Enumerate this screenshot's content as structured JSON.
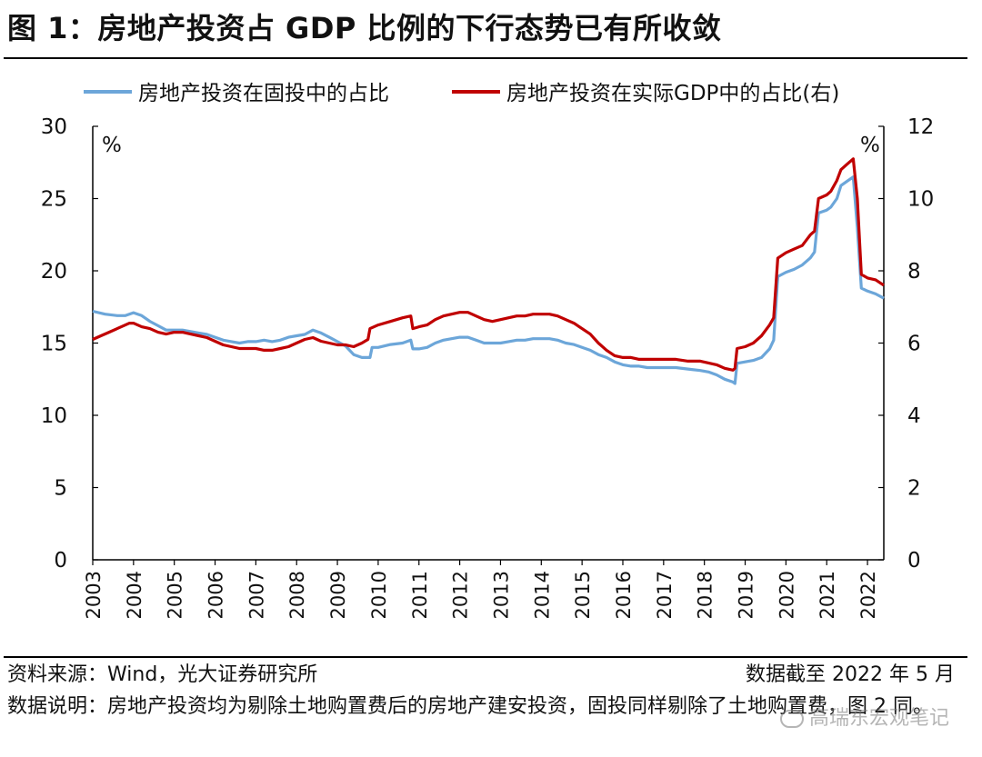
{
  "figure": {
    "title": "图 1：房地产投资占 GDP 比例的下行态势已有所收敛",
    "source": "资料来源：Wind，光大证券研究所",
    "cutoff": "数据截至 2022 年 5 月",
    "note": "数据说明：房地产投资均为剔除土地购置费后的房地产建安投资，固投同样剔除了土地购置费，图 2 同。",
    "watermark": "高瑞东宏观笔记"
  },
  "chart_data": {
    "type": "line",
    "unit_left": "%",
    "unit_right": "%",
    "left_ylim": [
      0,
      30
    ],
    "left_yticks": [
      "0",
      "5",
      "10",
      "15",
      "20",
      "25",
      "30"
    ],
    "right_ylim": [
      0,
      12
    ],
    "right_yticks": [
      "0",
      "2",
      "4",
      "6",
      "8",
      "10",
      "12"
    ],
    "x_ticks": [
      "2003",
      "2004",
      "2005",
      "2006",
      "2007",
      "2008",
      "2009",
      "2010",
      "2011",
      "2012",
      "2013",
      "2014",
      "2015",
      "2016",
      "2017",
      "2018",
      "2019",
      "2020",
      "2021",
      "2022"
    ],
    "x_range": [
      2003.0,
      2022.4
    ],
    "grid": false,
    "legend_position": "top",
    "series": [
      {
        "name": "房地产投资在固投中的占比",
        "axis": "left",
        "color": "#6CA6D9",
        "points": [
          [
            2003.0,
            17.2
          ],
          [
            2003.3,
            17.0
          ],
          [
            2003.6,
            16.9
          ],
          [
            2003.8,
            16.9
          ],
          [
            2004.0,
            17.1
          ],
          [
            2004.2,
            16.9
          ],
          [
            2004.4,
            16.5
          ],
          [
            2004.6,
            16.2
          ],
          [
            2004.8,
            15.9
          ],
          [
            2005.0,
            15.9
          ],
          [
            2005.2,
            15.9
          ],
          [
            2005.4,
            15.8
          ],
          [
            2005.6,
            15.7
          ],
          [
            2005.8,
            15.6
          ],
          [
            2006.0,
            15.4
          ],
          [
            2006.2,
            15.2
          ],
          [
            2006.4,
            15.1
          ],
          [
            2006.6,
            15.0
          ],
          [
            2006.8,
            15.1
          ],
          [
            2007.0,
            15.1
          ],
          [
            2007.2,
            15.2
          ],
          [
            2007.4,
            15.1
          ],
          [
            2007.6,
            15.2
          ],
          [
            2007.8,
            15.4
          ],
          [
            2008.0,
            15.5
          ],
          [
            2008.2,
            15.6
          ],
          [
            2008.4,
            15.9
          ],
          [
            2008.6,
            15.7
          ],
          [
            2008.8,
            15.4
          ],
          [
            2009.0,
            15.1
          ],
          [
            2009.2,
            14.8
          ],
          [
            2009.4,
            14.2
          ],
          [
            2009.6,
            14.0
          ],
          [
            2009.8,
            14.0
          ],
          [
            2009.85,
            14.7
          ],
          [
            2010.0,
            14.7
          ],
          [
            2010.3,
            14.9
          ],
          [
            2010.6,
            15.0
          ],
          [
            2010.8,
            15.2
          ],
          [
            2010.85,
            14.6
          ],
          [
            2011.0,
            14.6
          ],
          [
            2011.2,
            14.7
          ],
          [
            2011.4,
            15.0
          ],
          [
            2011.6,
            15.2
          ],
          [
            2011.8,
            15.3
          ],
          [
            2012.0,
            15.4
          ],
          [
            2012.2,
            15.4
          ],
          [
            2012.4,
            15.2
          ],
          [
            2012.6,
            15.0
          ],
          [
            2012.8,
            15.0
          ],
          [
            2013.0,
            15.0
          ],
          [
            2013.2,
            15.1
          ],
          [
            2013.4,
            15.2
          ],
          [
            2013.6,
            15.2
          ],
          [
            2013.8,
            15.3
          ],
          [
            2014.0,
            15.3
          ],
          [
            2014.2,
            15.3
          ],
          [
            2014.4,
            15.2
          ],
          [
            2014.6,
            15.0
          ],
          [
            2014.8,
            14.9
          ],
          [
            2015.0,
            14.7
          ],
          [
            2015.2,
            14.5
          ],
          [
            2015.4,
            14.2
          ],
          [
            2015.6,
            14.0
          ],
          [
            2015.8,
            13.7
          ],
          [
            2016.0,
            13.5
          ],
          [
            2016.2,
            13.4
          ],
          [
            2016.4,
            13.4
          ],
          [
            2016.6,
            13.3
          ],
          [
            2016.8,
            13.3
          ],
          [
            2017.0,
            13.3
          ],
          [
            2017.3,
            13.3
          ],
          [
            2017.6,
            13.2
          ],
          [
            2017.9,
            13.1
          ],
          [
            2018.1,
            13.0
          ],
          [
            2018.3,
            12.8
          ],
          [
            2018.5,
            12.5
          ],
          [
            2018.7,
            12.3
          ],
          [
            2018.75,
            12.2
          ],
          [
            2018.8,
            13.6
          ],
          [
            2019.0,
            13.7
          ],
          [
            2019.2,
            13.8
          ],
          [
            2019.4,
            14.0
          ],
          [
            2019.6,
            14.6
          ],
          [
            2019.7,
            15.2
          ],
          [
            2019.8,
            19.6
          ],
          [
            2020.0,
            19.9
          ],
          [
            2020.2,
            20.1
          ],
          [
            2020.4,
            20.4
          ],
          [
            2020.6,
            20.9
          ],
          [
            2020.7,
            21.3
          ],
          [
            2020.8,
            24.0
          ],
          [
            2021.0,
            24.2
          ],
          [
            2021.1,
            24.4
          ],
          [
            2021.25,
            25.0
          ],
          [
            2021.35,
            25.9
          ],
          [
            2021.5,
            26.2
          ],
          [
            2021.65,
            26.5
          ],
          [
            2021.75,
            23.0
          ],
          [
            2021.85,
            18.8
          ],
          [
            2022.0,
            18.6
          ],
          [
            2022.2,
            18.4
          ],
          [
            2022.4,
            18.1
          ]
        ]
      },
      {
        "name": "房地产投资在实际GDP中的占比(右)",
        "axis": "right",
        "color": "#C00000",
        "points": [
          [
            2003.0,
            6.1
          ],
          [
            2003.2,
            6.2
          ],
          [
            2003.4,
            6.3
          ],
          [
            2003.6,
            6.4
          ],
          [
            2003.8,
            6.5
          ],
          [
            2003.9,
            6.55
          ],
          [
            2004.0,
            6.55
          ],
          [
            2004.2,
            6.45
          ],
          [
            2004.4,
            6.4
          ],
          [
            2004.6,
            6.3
          ],
          [
            2004.8,
            6.25
          ],
          [
            2005.0,
            6.3
          ],
          [
            2005.2,
            6.3
          ],
          [
            2005.4,
            6.25
          ],
          [
            2005.6,
            6.2
          ],
          [
            2005.8,
            6.15
          ],
          [
            2006.0,
            6.05
          ],
          [
            2006.2,
            5.95
          ],
          [
            2006.4,
            5.9
          ],
          [
            2006.6,
            5.85
          ],
          [
            2006.8,
            5.85
          ],
          [
            2007.0,
            5.85
          ],
          [
            2007.2,
            5.8
          ],
          [
            2007.4,
            5.8
          ],
          [
            2007.6,
            5.85
          ],
          [
            2007.8,
            5.9
          ],
          [
            2008.0,
            6.0
          ],
          [
            2008.2,
            6.1
          ],
          [
            2008.4,
            6.15
          ],
          [
            2008.6,
            6.05
          ],
          [
            2008.8,
            6.0
          ],
          [
            2009.0,
            5.95
          ],
          [
            2009.2,
            5.95
          ],
          [
            2009.4,
            5.9
          ],
          [
            2009.6,
            6.0
          ],
          [
            2009.75,
            6.1
          ],
          [
            2009.8,
            6.4
          ],
          [
            2010.0,
            6.5
          ],
          [
            2010.3,
            6.6
          ],
          [
            2010.6,
            6.7
          ],
          [
            2010.8,
            6.75
          ],
          [
            2010.85,
            6.4
          ],
          [
            2011.0,
            6.45
          ],
          [
            2011.2,
            6.5
          ],
          [
            2011.4,
            6.65
          ],
          [
            2011.6,
            6.75
          ],
          [
            2011.8,
            6.8
          ],
          [
            2012.0,
            6.85
          ],
          [
            2012.2,
            6.85
          ],
          [
            2012.4,
            6.75
          ],
          [
            2012.6,
            6.65
          ],
          [
            2012.8,
            6.6
          ],
          [
            2013.0,
            6.65
          ],
          [
            2013.2,
            6.7
          ],
          [
            2013.4,
            6.75
          ],
          [
            2013.6,
            6.75
          ],
          [
            2013.8,
            6.8
          ],
          [
            2014.0,
            6.8
          ],
          [
            2014.2,
            6.8
          ],
          [
            2014.4,
            6.75
          ],
          [
            2014.6,
            6.65
          ],
          [
            2014.8,
            6.55
          ],
          [
            2015.0,
            6.4
          ],
          [
            2015.2,
            6.25
          ],
          [
            2015.4,
            6.0
          ],
          [
            2015.6,
            5.8
          ],
          [
            2015.8,
            5.65
          ],
          [
            2016.0,
            5.6
          ],
          [
            2016.2,
            5.6
          ],
          [
            2016.4,
            5.55
          ],
          [
            2016.6,
            5.55
          ],
          [
            2016.8,
            5.55
          ],
          [
            2017.0,
            5.55
          ],
          [
            2017.3,
            5.55
          ],
          [
            2017.6,
            5.5
          ],
          [
            2017.9,
            5.5
          ],
          [
            2018.1,
            5.45
          ],
          [
            2018.3,
            5.4
          ],
          [
            2018.5,
            5.3
          ],
          [
            2018.7,
            5.25
          ],
          [
            2018.75,
            5.3
          ],
          [
            2018.8,
            5.85
          ],
          [
            2019.0,
            5.9
          ],
          [
            2019.2,
            6.0
          ],
          [
            2019.4,
            6.2
          ],
          [
            2019.6,
            6.5
          ],
          [
            2019.7,
            6.7
          ],
          [
            2019.8,
            8.35
          ],
          [
            2020.0,
            8.5
          ],
          [
            2020.2,
            8.6
          ],
          [
            2020.4,
            8.7
          ],
          [
            2020.6,
            9.0
          ],
          [
            2020.7,
            9.1
          ],
          [
            2020.8,
            10.0
          ],
          [
            2021.0,
            10.1
          ],
          [
            2021.1,
            10.2
          ],
          [
            2021.25,
            10.5
          ],
          [
            2021.35,
            10.8
          ],
          [
            2021.5,
            10.95
          ],
          [
            2021.65,
            11.1
          ],
          [
            2021.75,
            10.0
          ],
          [
            2021.85,
            7.9
          ],
          [
            2022.0,
            7.8
          ],
          [
            2022.2,
            7.75
          ],
          [
            2022.4,
            7.6
          ]
        ]
      }
    ]
  }
}
